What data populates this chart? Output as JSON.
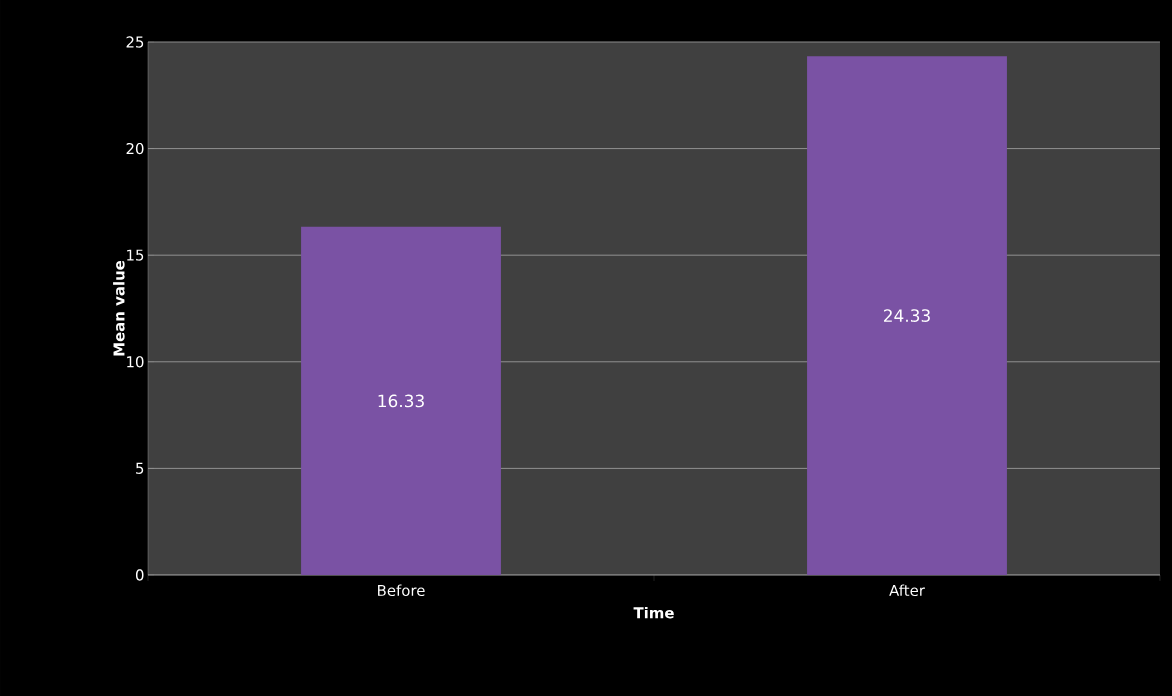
{
  "chart_data": {
    "type": "bar",
    "xlabel": "Time",
    "ylabel": "Mean value",
    "categories": [
      "Before",
      "After"
    ],
    "values": [
      16.33,
      24.33
    ],
    "color": "#7a52a4",
    "ylim": [
      0,
      25
    ],
    "yticks": [
      0,
      5,
      10,
      15,
      20,
      25
    ],
    "grid": "y",
    "data_labels": true
  }
}
